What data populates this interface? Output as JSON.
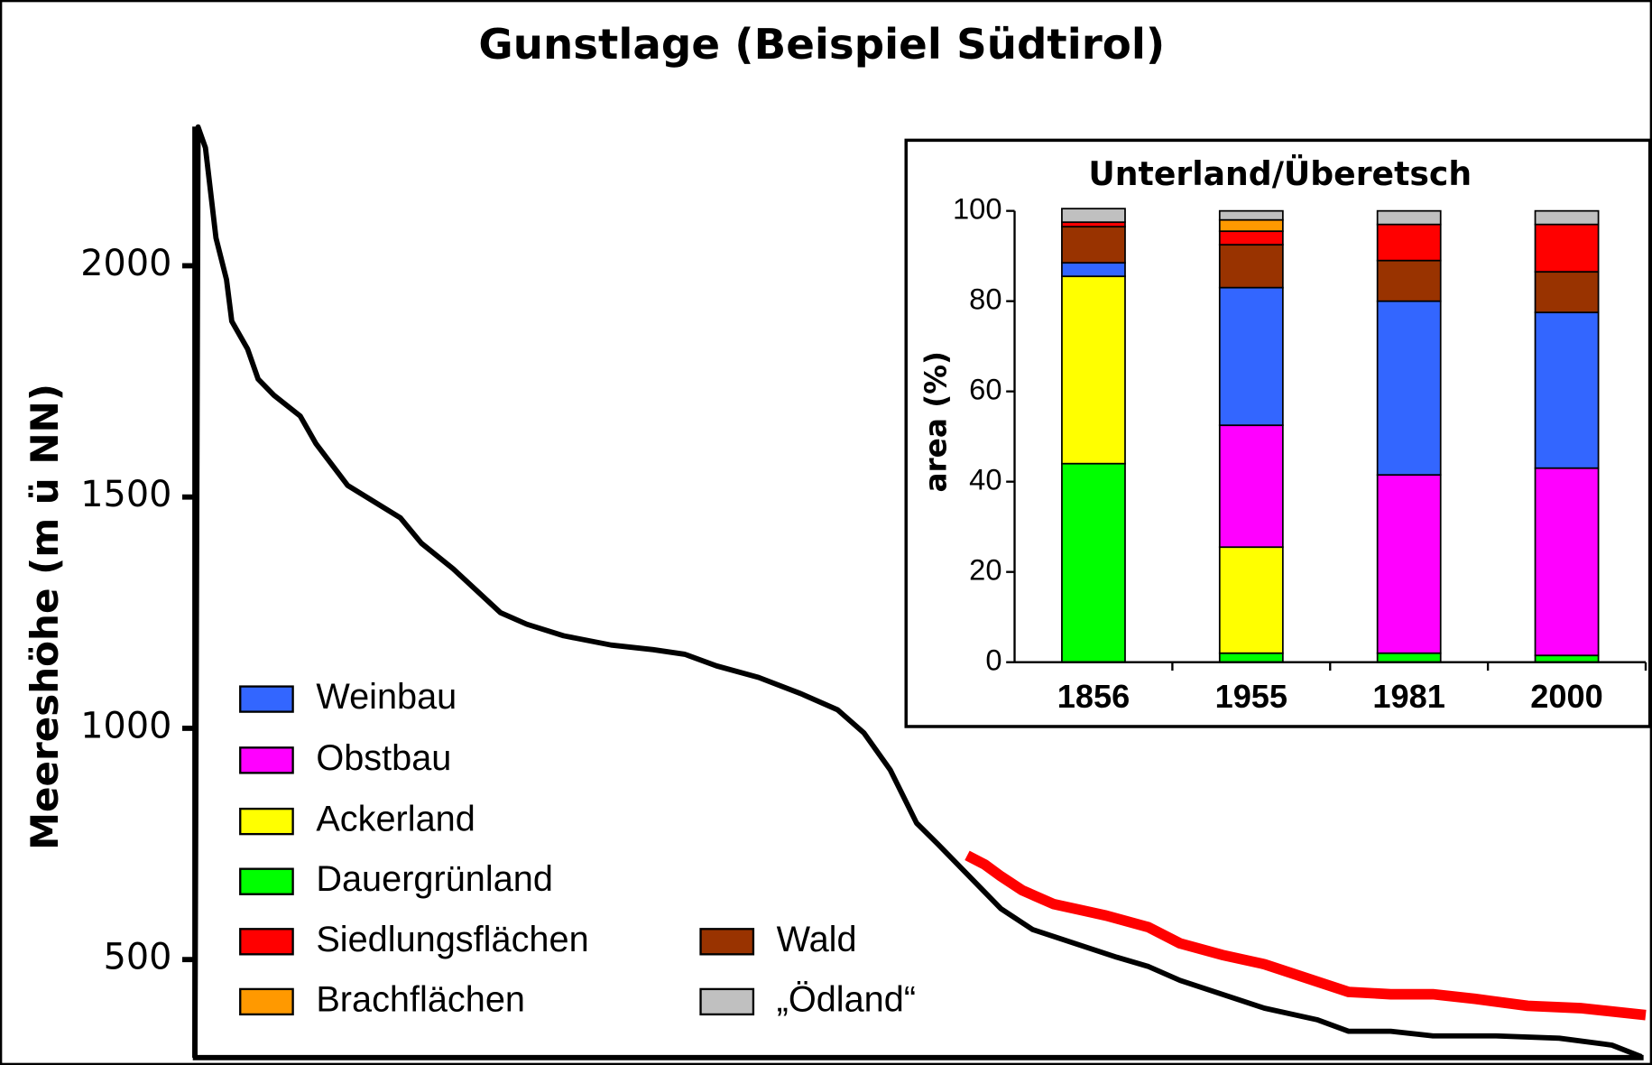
{
  "chart_data": [
    {
      "type": "line",
      "title": "Gunstlage (Beispiel Südtirol)",
      "y_label": "Meereshöhe (m ü NN)",
      "xlim": [
        0,
        1375
      ],
      "ylim": [
        288,
        2301
      ],
      "yticks": [
        500,
        1000,
        1500,
        2000
      ],
      "series": [
        {
          "color": "#000000",
          "x": [
            0,
            3,
            10,
            20,
            30,
            35,
            50,
            60,
            75,
            100,
            115,
            145,
            195,
            215,
            245,
            290,
            315,
            350,
            395,
            435,
            465,
            495,
            535,
            575,
            610,
            635,
            660,
            685,
            705,
            735,
            765,
            795,
            835,
            875,
            905,
            935,
            975,
            1015,
            1065,
            1095,
            1135,
            1175,
            1235,
            1295,
            1345,
            1373
          ],
          "values": [
            288,
            2300,
            2255,
            2060,
            1970,
            1880,
            1820,
            1755,
            1720,
            1675,
            1615,
            1525,
            1455,
            1400,
            1345,
            1250,
            1225,
            1200,
            1180,
            1170,
            1160,
            1135,
            1110,
            1075,
            1040,
            990,
            910,
            795,
            750,
            680,
            610,
            565,
            535,
            505,
            485,
            455,
            425,
            395,
            370,
            345,
            345,
            335,
            335,
            330,
            315,
            290
          ]
        },
        {
          "color": "#ff0000",
          "x": [
            733,
            750,
            765,
            785,
            815,
            865,
            905,
            935,
            975,
            1015,
            1055,
            1095,
            1135,
            1175,
            1215,
            1265,
            1315,
            1377
          ],
          "values": [
            725,
            705,
            680,
            650,
            620,
            595,
            570,
            535,
            510,
            490,
            460,
            430,
            425,
            425,
            415,
            400,
            395,
            380
          ]
        }
      ]
    },
    {
      "type": "stacked_bar",
      "title": "Unterland/Überetsch",
      "y_label": "area (%)",
      "categories": [
        "1856",
        "1955",
        "1981",
        "2000"
      ],
      "ylim": [
        0,
        100
      ],
      "yticks": [
        0,
        20,
        40,
        60,
        80,
        100
      ],
      "series": [
        {
          "name": "Dauergrünland",
          "color": "#00ff00",
          "values": [
            44,
            2,
            2,
            1.5
          ]
        },
        {
          "name": "Ackerland",
          "color": "#ffff00",
          "values": [
            41.5,
            23.5,
            0,
            0
          ]
        },
        {
          "name": "Obstbau",
          "color": "#ff00ff",
          "values": [
            0,
            27,
            39.5,
            41.5
          ]
        },
        {
          "name": "Weinbau",
          "color": "#3366ff",
          "values": [
            3,
            30.5,
            38.5,
            34.5
          ]
        },
        {
          "name": "Wald",
          "color": "#993300",
          "values": [
            8,
            9.5,
            9,
            9
          ]
        },
        {
          "name": "Siedlungsflächen",
          "color": "#ff0000",
          "values": [
            1,
            3,
            8,
            10.5
          ]
        },
        {
          "name": "Brachflächen",
          "color": "#ff9900",
          "values": [
            0,
            2.5,
            0,
            0
          ]
        },
        {
          "name": "„Ödland“",
          "color": "#c0c0c0",
          "values": [
            3,
            2,
            3,
            3
          ]
        }
      ]
    }
  ]
}
